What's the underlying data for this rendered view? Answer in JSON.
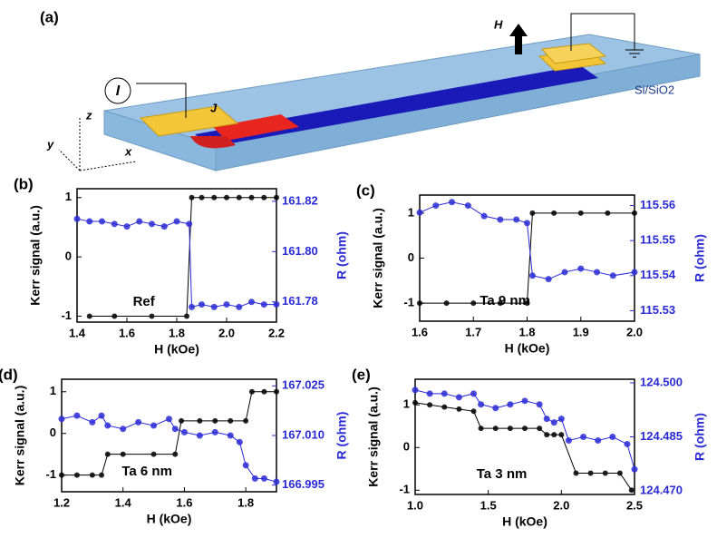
{
  "panel_a": {
    "label": "(a)",
    "current_symbol": "I",
    "junction_label": "J",
    "field_label": "H",
    "axis_z": "z",
    "axis_y": "y",
    "axis_x": "x",
    "substrate": "Si/SiO2"
  },
  "chart_data": [
    {
      "type": "line",
      "panel_label": "(b)",
      "annotation": "Ref",
      "xlabel": "H (kOe)",
      "ylabel": "Kerr signal (a.u.)",
      "y2label": "R (ohm)",
      "xlim": [
        1.4,
        2.2
      ],
      "xticks": [
        1.4,
        1.6,
        1.8,
        {
          "value": 2,
          "label": "2.0"
        },
        2.2
      ],
      "ylim": [
        -1.1,
        1.15
      ],
      "yticks": [
        -1,
        0,
        1
      ],
      "y2lim": [
        161.772,
        161.825
      ],
      "y2ticks": [
        161.78,
        {
          "value": 161.8,
          "label": "161.80"
        },
        161.82
      ],
      "series": [
        {
          "color": "#000000",
          "x": [
            1.45,
            1.55,
            1.7,
            1.84,
            1.86,
            1.9,
            1.95,
            2.0,
            2.05,
            2.1,
            2.15,
            2.2
          ],
          "values": [
            -1,
            -1,
            -1,
            -1,
            1,
            1,
            1,
            1,
            1,
            1,
            1,
            1
          ]
        },
        {
          "color": "#2b2bd6",
          "axis": "y2",
          "x": [
            1.4,
            1.45,
            1.5,
            1.55,
            1.6,
            1.65,
            1.7,
            1.75,
            1.8,
            1.85,
            1.86,
            1.9,
            1.95,
            2.0,
            2.05,
            2.1,
            2.15,
            2.2
          ],
          "values": [
            161.813,
            161.812,
            161.812,
            161.811,
            161.81,
            161.812,
            161.811,
            161.81,
            161.812,
            161.811,
            161.778,
            161.779,
            161.778,
            161.779,
            161.778,
            161.78,
            161.779,
            161.779
          ]
        }
      ]
    },
    {
      "type": "line",
      "panel_label": "(c)",
      "annotation": "Ta 9 nm",
      "xlabel": "H (kOe)",
      "ylabel": "Kerr signal (a.u.)",
      "y2label": "R (ohm)",
      "xlim": [
        1.6,
        2.0
      ],
      "xticks": [
        1.6,
        1.7,
        1.8,
        1.9,
        {
          "value": 2,
          "label": "2.0"
        }
      ],
      "ylim": [
        -1.4,
        1.4
      ],
      "yticks": [
        -1,
        0,
        1
      ],
      "y2lim": [
        115.527,
        115.563
      ],
      "y2ticks": [
        115.53,
        115.54,
        115.55,
        115.56
      ],
      "series": [
        {
          "color": "#000000",
          "x": [
            1.6,
            1.65,
            1.7,
            1.75,
            1.8,
            1.81,
            1.85,
            1.9,
            1.95,
            2.0
          ],
          "values": [
            -1,
            -1,
            -1,
            -1,
            -1,
            1,
            1,
            1,
            1,
            1
          ]
        },
        {
          "color": "#2b2bd6",
          "axis": "y2",
          "x": [
            1.6,
            1.63,
            1.66,
            1.69,
            1.72,
            1.75,
            1.78,
            1.8,
            1.81,
            1.84,
            1.87,
            1.9,
            1.93,
            1.96,
            2.0
          ],
          "values": [
            115.558,
            115.56,
            115.561,
            115.56,
            115.557,
            115.556,
            115.556,
            115.555,
            115.54,
            115.539,
            115.541,
            115.542,
            115.541,
            115.54,
            115.541
          ]
        }
      ]
    },
    {
      "type": "line",
      "panel_label": "(d)",
      "annotation": "Ta 6 nm",
      "xlabel": "H (kOe)",
      "ylabel": "Kerr signal (a.u.)",
      "y2label": "R (ohm)",
      "xlim": [
        1.2,
        1.9
      ],
      "xticks": [
        1.2,
        1.4,
        1.6,
        1.8
      ],
      "ylim": [
        -1.4,
        1.3
      ],
      "yticks": [
        -1,
        0,
        1
      ],
      "y2lim": [
        166.993,
        167.027
      ],
      "y2ticks": [
        166.995,
        {
          "value": 167.01,
          "label": "167.010"
        },
        167.025
      ],
      "series": [
        {
          "color": "#000000",
          "x": [
            1.2,
            1.25,
            1.3,
            1.33,
            1.35,
            1.4,
            1.5,
            1.57,
            1.59,
            1.65,
            1.7,
            1.75,
            1.8,
            1.82,
            1.86,
            1.9
          ],
          "values": [
            -1,
            -1,
            -1,
            -1,
            -0.5,
            -0.5,
            -0.5,
            -0.5,
            0.3,
            0.3,
            0.3,
            0.3,
            0.3,
            1,
            1,
            1
          ]
        },
        {
          "color": "#2b2bd6",
          "axis": "y2",
          "x": [
            1.2,
            1.25,
            1.3,
            1.33,
            1.35,
            1.4,
            1.45,
            1.5,
            1.55,
            1.57,
            1.6,
            1.65,
            1.7,
            1.75,
            1.78,
            1.8,
            1.83,
            1.86,
            1.9
          ],
          "values": [
            167.015,
            167.016,
            167.014,
            167.016,
            167.013,
            167.012,
            167.014,
            167.013,
            167.015,
            167.012,
            167.011,
            167.01,
            167.011,
            167.01,
            167.008,
            167.001,
            166.997,
            166.997,
            166.996
          ]
        }
      ]
    },
    {
      "type": "line",
      "panel_label": "(e)",
      "annotation": "Ta 3 nm",
      "xlabel": "H (kOe)",
      "ylabel": "Kerr signal (a.u.)",
      "y2label": "R (ohm)",
      "xlim": [
        1.0,
        2.5
      ],
      "xticks": [
        {
          "value": 1,
          "label": "1.0"
        },
        1.5,
        {
          "value": 2,
          "label": "2.0"
        },
        2.5
      ],
      "ylim": [
        -1.1,
        1.6
      ],
      "yticks": [
        -1,
        0,
        1
      ],
      "y2lim": [
        124.469,
        124.501
      ],
      "y2ticks": [
        {
          "value": 124.47,
          "label": "124.470"
        },
        124.485,
        {
          "value": 124.5,
          "label": "124.500"
        }
      ],
      "series": [
        {
          "color": "#000000",
          "x": [
            1.0,
            1.1,
            1.2,
            1.3,
            1.4,
            1.45,
            1.55,
            1.65,
            1.75,
            1.85,
            1.9,
            1.95,
            2.0,
            2.1,
            2.2,
            2.3,
            2.4,
            2.48
          ],
          "values": [
            1.05,
            1,
            0.95,
            0.9,
            0.85,
            0.45,
            0.45,
            0.45,
            0.45,
            0.45,
            0.3,
            0.3,
            0.3,
            -0.6,
            -0.6,
            -0.6,
            -0.6,
            -1
          ]
        },
        {
          "color": "#2b2bd6",
          "axis": "y2",
          "x": [
            1.0,
            1.1,
            1.2,
            1.3,
            1.4,
            1.45,
            1.55,
            1.65,
            1.75,
            1.85,
            1.9,
            1.95,
            2.0,
            2.05,
            2.15,
            2.25,
            2.35,
            2.45,
            2.5
          ],
          "values": [
            124.498,
            124.497,
            124.497,
            124.496,
            124.497,
            124.494,
            124.493,
            124.494,
            124.495,
            124.494,
            124.49,
            124.489,
            124.49,
            124.484,
            124.485,
            124.484,
            124.485,
            124.483,
            124.476
          ]
        }
      ]
    }
  ]
}
